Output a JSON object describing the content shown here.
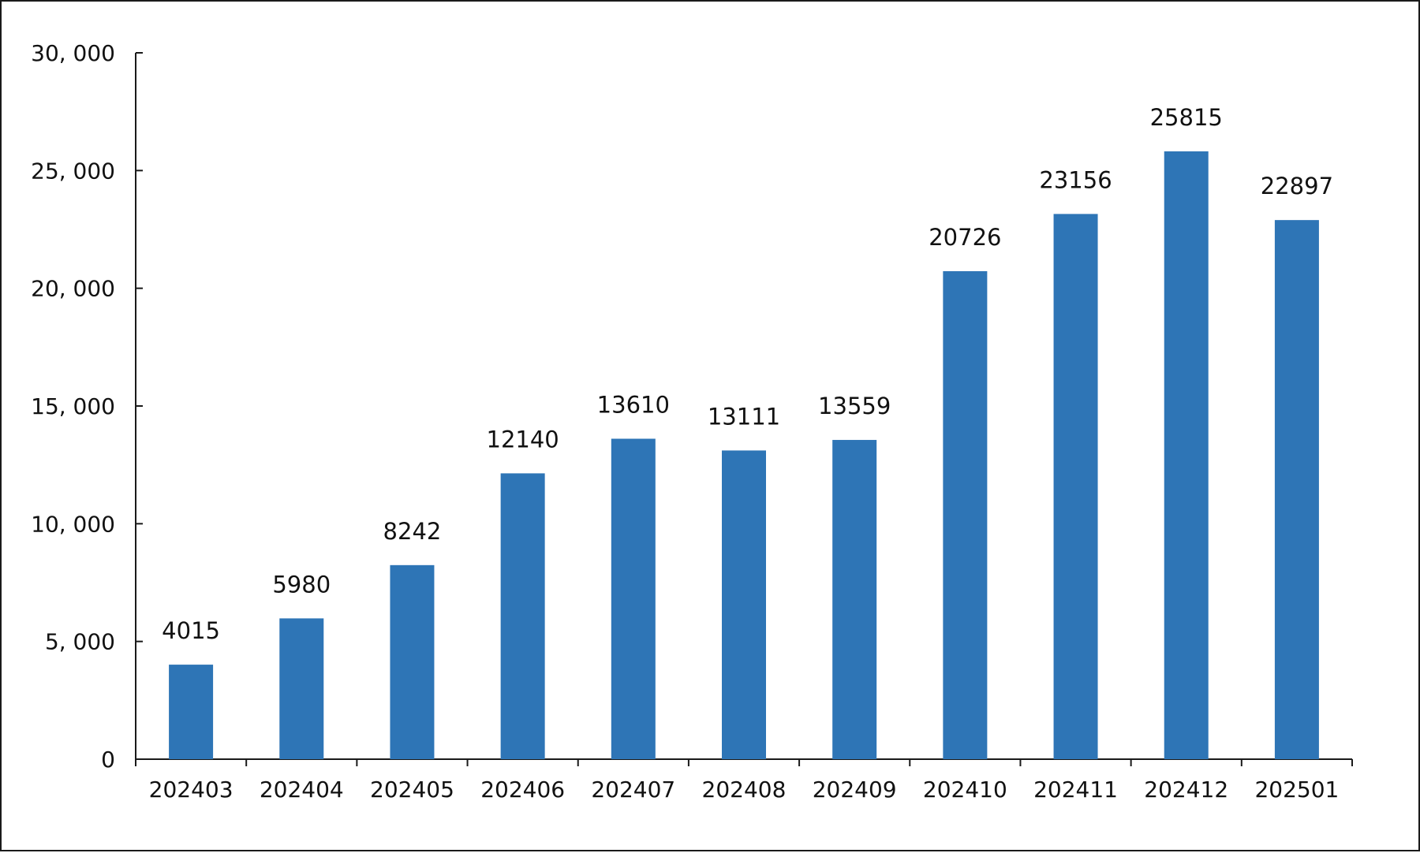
{
  "colors": {
    "bar": "#2E75B6",
    "axis": "#1a1a1a",
    "text": "#111111"
  },
  "chart_data": {
    "type": "bar",
    "title": "",
    "xlabel": "",
    "ylabel": "",
    "categories": [
      "202403",
      "202404",
      "202405",
      "202406",
      "202407",
      "202408",
      "202409",
      "202410",
      "202411",
      "202412",
      "202501"
    ],
    "values": [
      4015,
      5980,
      8242,
      12140,
      13610,
      13111,
      13559,
      20726,
      23156,
      25815,
      22897
    ],
    "data_labels": [
      "4015",
      "5980",
      "8242",
      "12140",
      "13610",
      "13111",
      "13559",
      "20726",
      "23156",
      "25815",
      "22897"
    ],
    "ylim": [
      0,
      30000
    ],
    "yticks": [
      0,
      5000,
      10000,
      15000,
      20000,
      25000,
      30000
    ],
    "ytick_labels": [
      "0",
      "5, 000",
      "10, 000",
      "15, 000",
      "20, 000",
      "25, 000",
      "30, 000"
    ],
    "grid": false,
    "legend": "none"
  }
}
